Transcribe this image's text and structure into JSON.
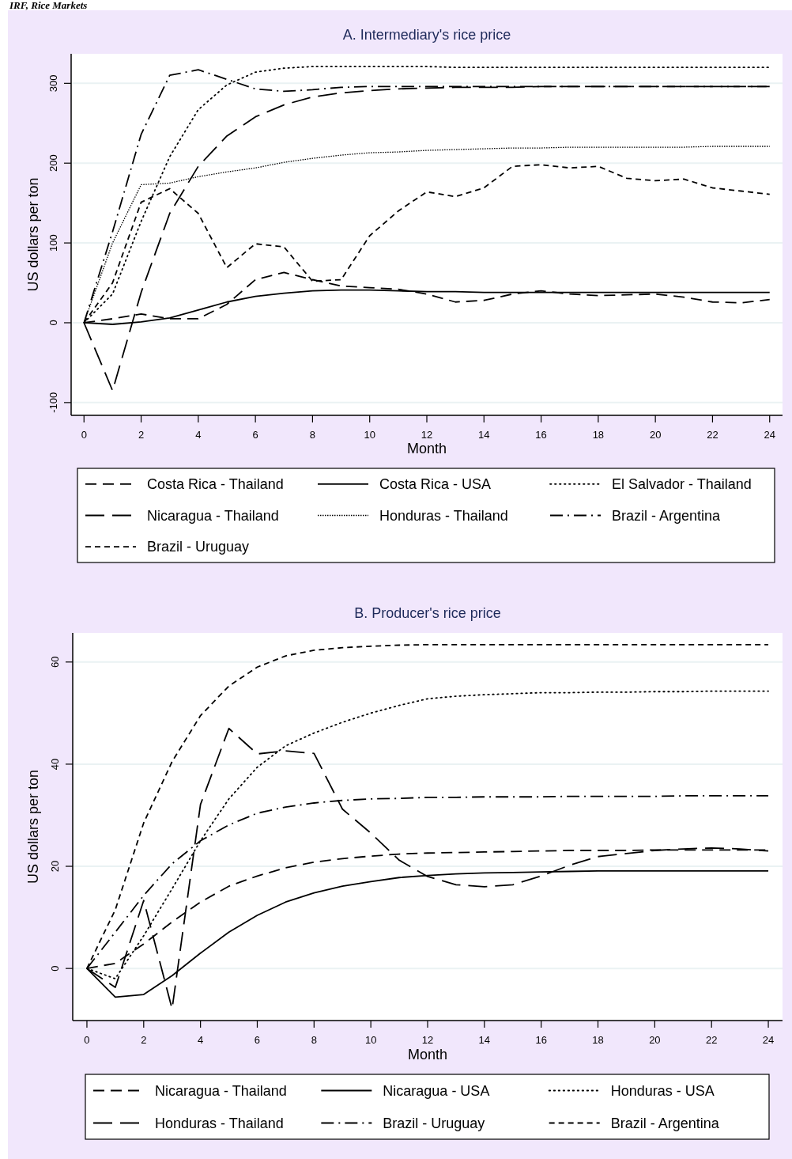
{
  "chart_data": [
    {
      "type": "line",
      "title": "A. Intermediary's rice price",
      "xlabel": "Month",
      "ylabel": "US dollars per ton",
      "annotations": [
        "IRF, Rice Markets"
      ],
      "x": [
        0,
        1,
        2,
        3,
        4,
        5,
        6,
        7,
        8,
        9,
        10,
        11,
        12,
        13,
        14,
        15,
        16,
        17,
        18,
        19,
        20,
        21,
        22,
        23,
        24
      ],
      "xlim": [
        -0.45,
        24.45
      ],
      "xticks": [
        0,
        2,
        4,
        6,
        8,
        10,
        12,
        14,
        16,
        18,
        20,
        22,
        24
      ],
      "ylim": [
        -116,
        337
      ],
      "yticks": [
        -100,
        0,
        100,
        200,
        300
      ],
      "grid": "y",
      "legend": "bottom",
      "series": [
        {
          "name": "Costa Rica - Thailand",
          "color": "#000000",
          "line_style": "dashed",
          "values": [
            0,
            5,
            11,
            5,
            5,
            23,
            54,
            63,
            54,
            46,
            44,
            42,
            36,
            26,
            28,
            36,
            40,
            36,
            34,
            35,
            36,
            32,
            26,
            25,
            29
          ]
        },
        {
          "name": "Costa Rica - USA",
          "color": "#000000",
          "line_style": "solid",
          "values": [
            0,
            -2,
            1,
            6,
            16,
            26,
            33,
            37,
            40,
            41,
            41,
            40,
            39,
            39,
            38,
            38,
            38,
            38,
            38,
            38,
            38,
            38,
            38,
            38,
            38
          ]
        },
        {
          "name": "El Salvador - Thailand",
          "color": "#000000",
          "line_style": "dotted",
          "values": [
            0,
            36,
            127,
            208,
            267,
            298,
            314,
            319,
            321,
            321,
            321,
            321,
            321,
            320,
            320,
            320,
            320,
            320,
            320,
            320,
            320,
            320,
            320,
            320,
            320
          ]
        },
        {
          "name": "Nicaragua - Thailand",
          "color": "#000000",
          "line_style": "longdash",
          "values": [
            0,
            -85,
            38,
            137,
            196,
            234,
            258,
            273,
            283,
            288,
            291,
            293,
            294,
            295,
            295,
            295,
            296,
            296,
            296,
            296,
            296,
            296,
            296,
            296,
            296
          ]
        },
        {
          "name": "Honduras - Thailand",
          "color": "#000000",
          "line_style": "densedot",
          "values": [
            0,
            100,
            173,
            175,
            183,
            189,
            194,
            201,
            206,
            210,
            213,
            214,
            216,
            217,
            218,
            219,
            219,
            220,
            220,
            220,
            220,
            220,
            221,
            221,
            221
          ]
        },
        {
          "name": "Brazil - Argentina",
          "color": "#000000",
          "line_style": "dashdot",
          "values": [
            0,
            114,
            236,
            310,
            317,
            305,
            293,
            290,
            292,
            295,
            296,
            296,
            296,
            296,
            296,
            296,
            296,
            296,
            296,
            296,
            296,
            296,
            296,
            296,
            296
          ]
        },
        {
          "name": "Brazil - Uruguay",
          "color": "#000000",
          "line_style": "shortdash",
          "values": [
            0,
            50,
            151,
            168,
            137,
            69,
            99,
            95,
            52,
            54,
            109,
            140,
            164,
            158,
            169,
            196,
            198,
            194,
            196,
            181,
            178,
            180,
            169,
            165,
            161
          ]
        }
      ]
    },
    {
      "type": "line",
      "title": "B. Producer's rice price",
      "xlabel": "Month",
      "ylabel": "US dollars per ton",
      "x": [
        0,
        1,
        2,
        3,
        4,
        5,
        6,
        7,
        8,
        9,
        10,
        11,
        12,
        13,
        14,
        15,
        16,
        17,
        18,
        19,
        20,
        21,
        22,
        23,
        24
      ],
      "xlim": [
        -0.5,
        24.5
      ],
      "xticks": [
        0,
        2,
        4,
        6,
        8,
        10,
        12,
        14,
        16,
        18,
        20,
        22,
        24
      ],
      "ylim": [
        -10.2,
        65.7
      ],
      "yticks": [
        0,
        20,
        40,
        60
      ],
      "grid": "y",
      "legend": "bottom",
      "series": [
        {
          "name": "Nicaragua - Thailand",
          "color": "#000000",
          "line_style": "dashed",
          "values": [
            0,
            1,
            4.8,
            9.1,
            13,
            16.1,
            18.1,
            19.7,
            20.8,
            21.5,
            22,
            22.4,
            22.6,
            22.7,
            22.8,
            22.9,
            23,
            23.1,
            23.1,
            23.1,
            23.2,
            23.2,
            23.2,
            23.2,
            23.2
          ]
        },
        {
          "name": "Nicaragua - USA",
          "color": "#000000",
          "line_style": "solid",
          "values": [
            0,
            -5.6,
            -5.1,
            -1.4,
            3,
            7.1,
            10.4,
            13,
            14.8,
            16.1,
            17,
            17.8,
            18.2,
            18.5,
            18.7,
            18.8,
            18.9,
            19,
            19.1,
            19.1,
            19.1,
            19.1,
            19.1,
            19.1,
            19.1
          ]
        },
        {
          "name": "Honduras - USA",
          "color": "#000000",
          "line_style": "dotted",
          "values": [
            0,
            -2,
            6.4,
            15.6,
            25,
            33.2,
            39.4,
            43.6,
            46.1,
            48.2,
            50,
            51.5,
            52.8,
            53.3,
            53.6,
            53.8,
            54,
            54,
            54.1,
            54.1,
            54.2,
            54.2,
            54.3,
            54.3,
            54.3
          ]
        },
        {
          "name": "Honduras - Thailand",
          "color": "#000000",
          "line_style": "longdash",
          "values": [
            0,
            -3.7,
            13.3,
            -7.9,
            32.1,
            47,
            42,
            42.6,
            42.1,
            31.2,
            26.5,
            21.2,
            18,
            16.4,
            16,
            16.4,
            18.1,
            20.2,
            21.9,
            22.5,
            23.1,
            23.4,
            23.6,
            23.4,
            23
          ]
        },
        {
          "name": "Brazil - Uruguay",
          "color": "#000000",
          "line_style": "dashdot",
          "values": [
            0,
            7.1,
            14.3,
            20.5,
            25,
            28.1,
            30.4,
            31.6,
            32.4,
            32.9,
            33.2,
            33.3,
            33.5,
            33.5,
            33.6,
            33.6,
            33.6,
            33.7,
            33.7,
            33.7,
            33.7,
            33.8,
            33.8,
            33.8,
            33.8
          ]
        },
        {
          "name": "Brazil - Argentina",
          "color": "#000000",
          "line_style": "shortdash",
          "values": [
            0,
            11.5,
            28.5,
            40.5,
            49.5,
            55.3,
            59,
            61.2,
            62.3,
            62.8,
            63.1,
            63.3,
            63.4,
            63.4,
            63.4,
            63.4,
            63.4,
            63.4,
            63.4,
            63.4,
            63.4,
            63.4,
            63.4,
            63.4,
            63.4
          ]
        }
      ]
    }
  ]
}
